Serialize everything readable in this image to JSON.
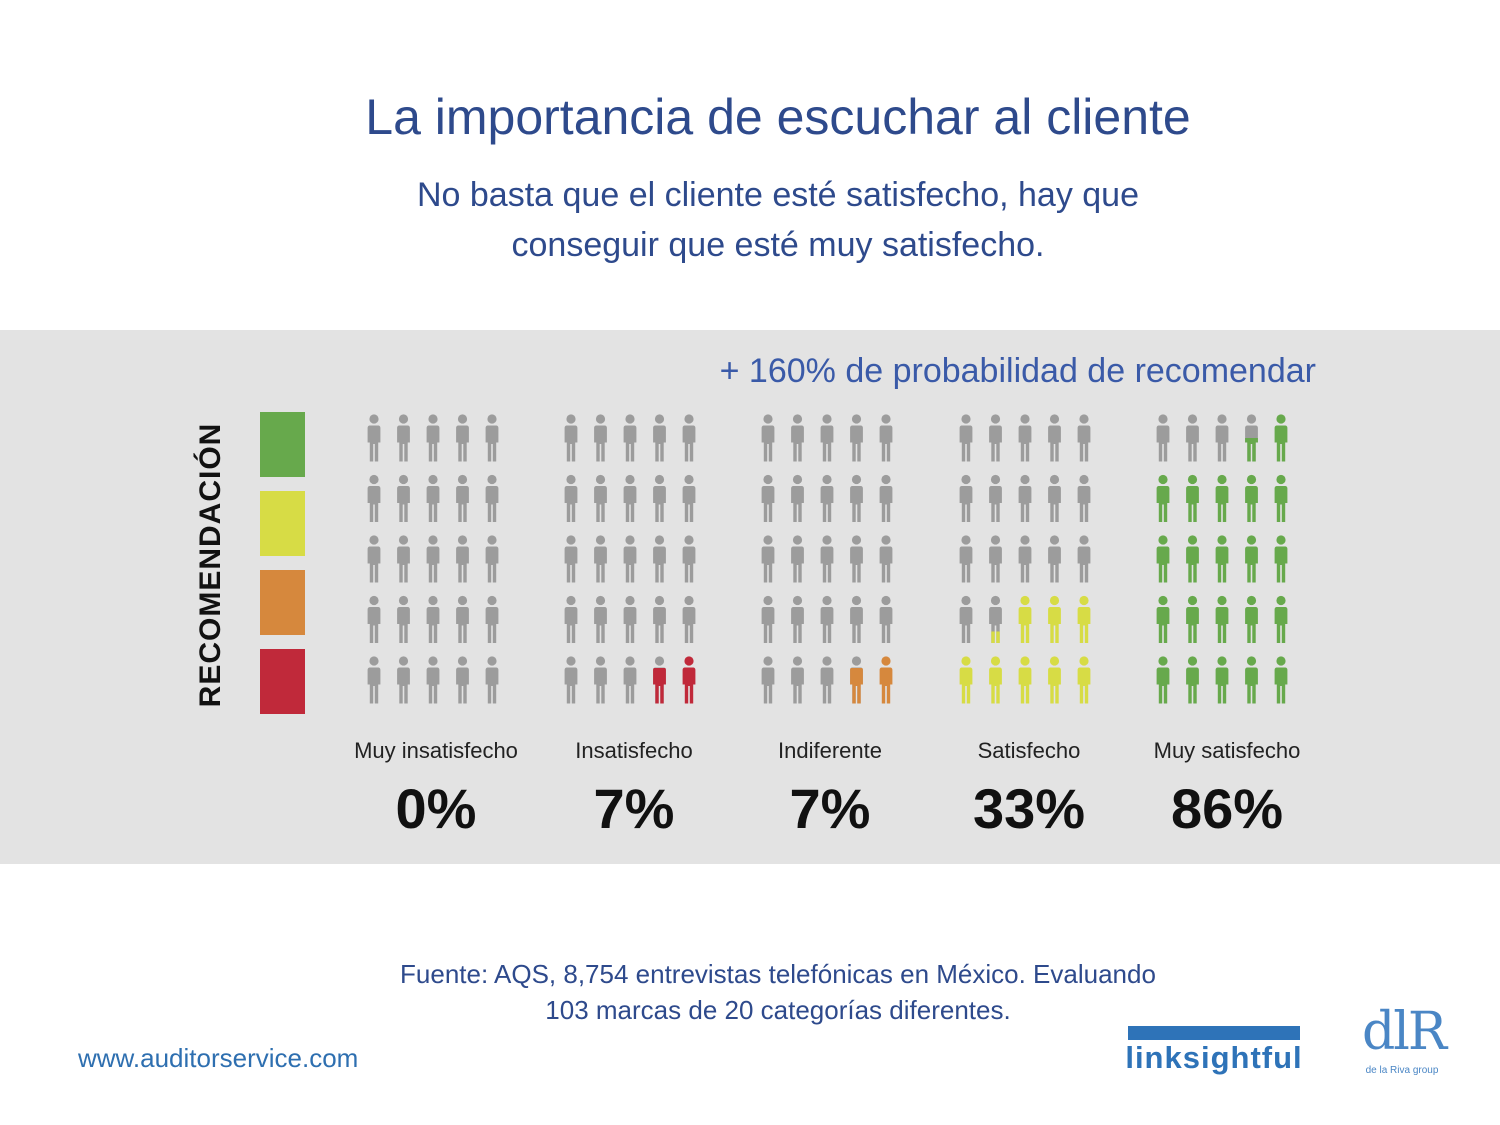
{
  "title": "La importancia de escuchar al cliente",
  "subtitle_line1": "No basta que el cliente esté satisfecho, hay que",
  "subtitle_line2": "conseguir que esté muy satisfecho.",
  "highlight": "+ 160% de probabilidad de recomendar",
  "vertical_label": "RECOMENDACIÓN",
  "scale_colors": [
    "#67a94c",
    "#d7dc45",
    "#d6883d",
    "#c0293a"
  ],
  "chart_data": {
    "type": "pictogram",
    "icons_per_group": 25,
    "inactive_color": "#9c9c9c",
    "categories": [
      "Muy insatisfecho",
      "Insatisfecho",
      "Indiferente",
      "Satisfecho",
      "Muy satisfecho"
    ],
    "values": [
      0,
      7,
      7,
      33,
      86
    ],
    "value_labels": [
      "0%",
      "7%",
      "7%",
      "33%",
      "86%"
    ],
    "colors": [
      "#c0293a",
      "#c0293a",
      "#d6883d",
      "#d7dc45",
      "#67a94c"
    ]
  },
  "source_line1": "Fuente: AQS, 8,754 entrevistas telefónicas en México. Evaluando",
  "source_line2": "103 marcas de 20 categorías diferentes.",
  "website": "www.auditorservice.com",
  "logo_linksightful": "linksightful",
  "logo_dlr": "dlR",
  "logo_dlr_sub": "de la Riva group"
}
